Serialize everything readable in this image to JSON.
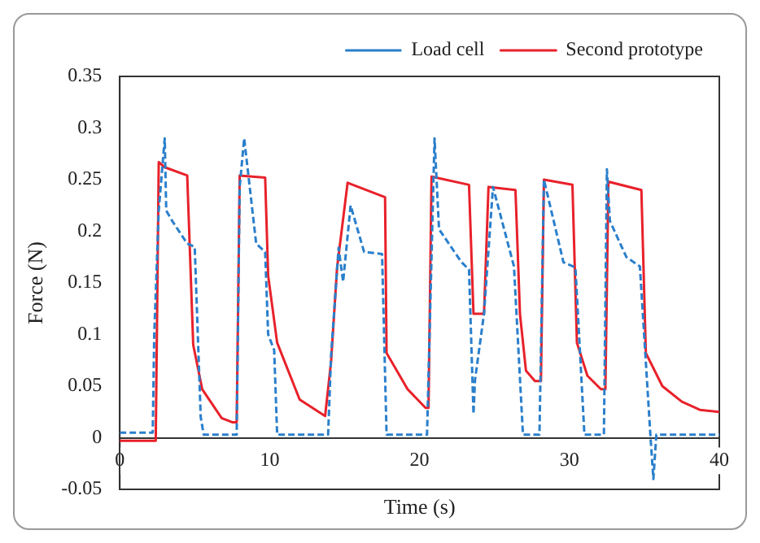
{
  "chart_data": {
    "type": "line",
    "xlabel": "Time (s)",
    "ylabel": "Force (N)",
    "xlim": [
      0,
      40
    ],
    "xticks": [
      0,
      10,
      20,
      30,
      40
    ],
    "ylim": [
      -0.05,
      0.35
    ],
    "yticks": [
      -0.05,
      0,
      0.05,
      0.1,
      0.15,
      0.2,
      0.25,
      0.3,
      0.35
    ],
    "legend": "top",
    "grid": false,
    "marker": "none",
    "series": [
      {
        "name": "Load cell",
        "color": "#2a7fcb",
        "line_style": "dashed",
        "x": [
          0,
          2.2,
          2.3,
          2.6,
          3.0,
          3.1,
          3.5,
          4.5,
          5.0,
          5.4,
          5.6,
          7.8,
          8.0,
          8.3,
          9.1,
          9.7,
          9.9,
          10.3,
          10.5,
          13.9,
          14.1,
          14.6,
          14.9,
          15.4,
          16.3,
          17.5,
          17.8,
          20.5,
          21.0,
          21.3,
          22.8,
          23.3,
          23.6,
          23.7,
          24.3,
          24.9,
          26.3,
          26.9,
          27.1,
          28.0,
          28.3,
          29.6,
          30.4,
          31.0,
          32.3,
          32.5,
          32.7,
          33.8,
          34.7,
          35.4,
          35.6,
          35.8,
          40
        ],
        "values": [
          0.005,
          0.005,
          0.1,
          0.22,
          0.29,
          0.22,
          0.21,
          0.188,
          0.185,
          0.02,
          0.003,
          0.003,
          0.243,
          0.29,
          0.188,
          0.18,
          0.1,
          0.085,
          0.003,
          0.003,
          0.08,
          0.184,
          0.151,
          0.225,
          0.18,
          0.178,
          0.003,
          0.003,
          0.29,
          0.202,
          0.17,
          0.163,
          0.023,
          0.056,
          0.12,
          0.243,
          0.166,
          0.003,
          0.003,
          0.003,
          0.25,
          0.17,
          0.165,
          0.003,
          0.003,
          0.26,
          0.21,
          0.175,
          0.166,
          0.003,
          -0.04,
          0.003,
          0.003
        ]
      },
      {
        "name": "Second prototype",
        "color": "#e8212a",
        "line_style": "solid",
        "x": [
          0,
          2.4,
          2.6,
          3.0,
          4.5,
          4.9,
          5.5,
          6.8,
          7.5,
          7.8,
          8.0,
          9.7,
          9.9,
          10.5,
          12.0,
          13.7,
          14.1,
          14.5,
          15.2,
          17.7,
          17.8,
          19.2,
          20.4,
          20.6,
          20.8,
          23.3,
          23.6,
          24.3,
          24.6,
          26.4,
          26.7,
          27.1,
          27.7,
          28.1,
          28.3,
          30.2,
          30.5,
          31.2,
          32.1,
          32.4,
          32.6,
          34.8,
          35.1,
          36.2,
          37.5,
          38.7,
          40
        ],
        "values": [
          -0.003,
          -0.003,
          0.267,
          0.262,
          0.254,
          0.09,
          0.047,
          0.019,
          0.015,
          0.015,
          0.254,
          0.252,
          0.157,
          0.092,
          0.037,
          0.021,
          0.074,
          0.165,
          0.247,
          0.233,
          0.082,
          0.047,
          0.029,
          0.029,
          0.253,
          0.245,
          0.12,
          0.12,
          0.243,
          0.24,
          0.12,
          0.065,
          0.055,
          0.055,
          0.25,
          0.245,
          0.092,
          0.06,
          0.047,
          0.047,
          0.248,
          0.24,
          0.082,
          0.05,
          0.035,
          0.027,
          0.025
        ]
      }
    ]
  }
}
